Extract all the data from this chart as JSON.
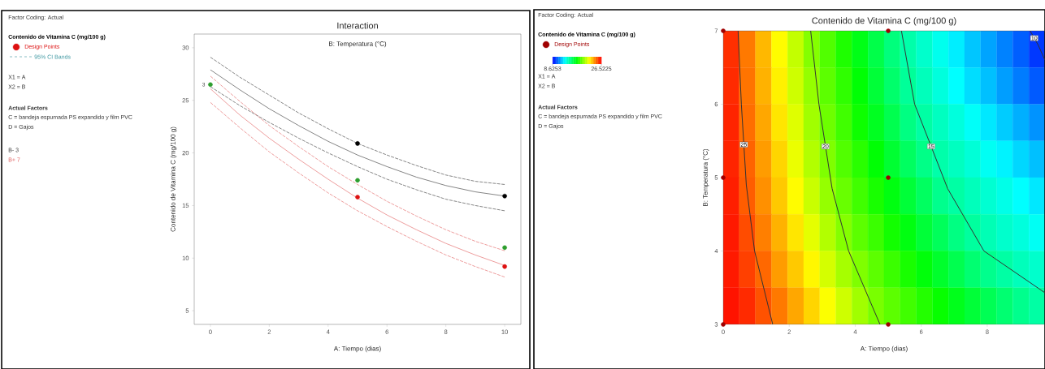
{
  "chart_data": [
    {
      "type": "line",
      "title": "Interaction",
      "subtitle": "B: Temperatura (°C)",
      "xlabel": "A: Tiempo (dias)",
      "ylabel": "Contenido de Vitamina C (mg/100 g)",
      "legend_title": "Contenido de Vitamina C (mg/100 g)",
      "legend": "left",
      "x": [
        0,
        1,
        2,
        3,
        4,
        5,
        6,
        7,
        8,
        9,
        10
      ],
      "series": [
        {
          "name": "B- 3",
          "type": "line",
          "color": "#333333",
          "values": [
            27.9,
            26.0,
            24.2,
            22.6,
            21.1,
            19.8,
            18.7,
            17.7,
            16.9,
            16.3,
            15.9
          ]
        },
        {
          "type": "line",
          "line_style": "dashed",
          "color": "#333333",
          "values": [
            26.3,
            24.5,
            22.9,
            21.4,
            20.0,
            18.7,
            17.5,
            16.5,
            15.6,
            15.0,
            14.5
          ]
        },
        {
          "type": "line",
          "line_style": "dashed",
          "color": "#333333",
          "values": [
            29.1,
            27.2,
            25.5,
            23.8,
            22.3,
            20.9,
            19.8,
            18.8,
            17.9,
            17.3,
            17.0
          ]
        },
        {
          "name": "B+ 7",
          "type": "line",
          "color": "#e05a5a",
          "values": [
            26.1,
            23.6,
            21.4,
            19.4,
            17.5,
            15.7,
            14.1,
            12.7,
            11.4,
            10.3,
            9.3
          ]
        },
        {
          "type": "line",
          "line_style": "dashed",
          "color": "#e05a5a",
          "values": [
            24.8,
            22.4,
            20.1,
            18.1,
            16.2,
            14.5,
            13.0,
            11.6,
            10.3,
            9.2,
            8.2
          ]
        },
        {
          "type": "line",
          "line_style": "dashed",
          "color": "#e05a5a",
          "values": [
            27.3,
            24.9,
            22.6,
            20.6,
            18.7,
            17.0,
            15.4,
            14.0,
            12.7,
            11.6,
            10.7
          ]
        },
        {
          "name": "Design Points",
          "type": "scatter",
          "marker": "circle",
          "color": "#dd1111",
          "x": [
            0,
            5,
            10,
            5,
            10,
            5,
            10
          ],
          "values": [
            26.5,
            17.4,
            11.0,
            20.9,
            15.9,
            15.8,
            9.2
          ],
          "colors": [
            "#2e9e2e",
            "#2e9e2e",
            "#2e9e2e",
            "#000000",
            "#000000",
            "#dd1111",
            "#dd1111"
          ]
        }
      ],
      "xlim": [
        -0.55,
        10.55
      ],
      "ylim": [
        3.7,
        31.3
      ],
      "xticks": [
        0,
        2,
        4,
        6,
        8,
        10
      ],
      "yticks": [
        5,
        10,
        15,
        20,
        25,
        30
      ],
      "annotations": [
        "Factor Coding: Actual",
        "95% CI Bands",
        "X1 = A",
        "X2 = B",
        "**Actual Factors**",
        "C = bandeja espumada PS expandido y film PVC",
        "D = Gajos",
        {
          "text": "3",
          "x": 0,
          "y": 26.5
        }
      ]
    },
    {
      "type": "line",
      "title": "Contenido de Vitamina C (mg/100 g)",
      "xlabel": "A: Tiempo (dias)",
      "ylabel": "B: Temperatura (°C)",
      "legend_title": "Contenido de Vitamina C (mg/100 g)",
      "legend": "left",
      "series": [
        {
          "name": "25",
          "type": "line",
          "color": "#333333",
          "x": [
            0.45,
            0.55,
            0.7,
            0.95,
            1.5
          ],
          "values": [
            7,
            6,
            4.9,
            4,
            3
          ]
        },
        {
          "name": "20",
          "type": "line",
          "color": "#333333",
          "x": [
            2.65,
            2.9,
            3.3,
            3.8,
            4.75
          ],
          "values": [
            7,
            6,
            4.85,
            4,
            3
          ]
        },
        {
          "name": "15",
          "type": "line",
          "color": "#333333",
          "x": [
            5.4,
            5.8,
            6.8,
            7.9,
            9.75
          ],
          "values": [
            7,
            6,
            4.85,
            4,
            3.43
          ]
        },
        {
          "name": "10",
          "type": "line",
          "color": "#333333",
          "x": [
            9.3,
            9.55,
            9.75
          ],
          "values": [
            7,
            6.8,
            6.6
          ]
        },
        {
          "name": "Design Points",
          "type": "scatter",
          "marker": "circle",
          "color": "#a00000",
          "x": [
            0,
            0,
            0,
            5,
            5,
            5
          ],
          "values": [
            7,
            5,
            3,
            7,
            5,
            3
          ]
        }
      ],
      "xlim": [
        0,
        9.75
      ],
      "ylim": [
        3,
        7
      ],
      "xticks": [
        0,
        2,
        4,
        6,
        8
      ],
      "yticks": [
        3,
        4,
        5,
        6,
        7
      ],
      "annotations": [
        "Factor Coding: Actual",
        "X1 = A",
        "X2 = B",
        "**Actual Factors**",
        "C = bandeja espumada PS expandido y film PVC",
        "D = Gajos"
      ]
    },
    {
      "type": "heatmap",
      "categories": [
        null,
        null,
        null,
        null,
        null,
        null,
        null,
        null,
        null,
        null,
        null,
        null,
        null,
        null,
        null,
        null,
        null,
        null,
        null,
        null
      ],
      "y_categories": [
        null,
        null,
        null,
        null,
        null,
        null,
        null,
        null
      ],
      "cells": [
        [
          25.7,
          24.4,
          23.3,
          22.1,
          21.0,
          19.9,
          19.0,
          18.1,
          17.2,
          16.3,
          15.4,
          14.6,
          14.0,
          13.4,
          12.8,
          12.1,
          11.5,
          10.9,
          10.3,
          9.6
        ],
        [
          25.8,
          24.5,
          23.4,
          22.3,
          21.2,
          20.2,
          19.2,
          18.4,
          17.5,
          16.6,
          15.7,
          14.9,
          14.3,
          13.7,
          13.1,
          12.5,
          12.0,
          11.4,
          10.8,
          10.2
        ],
        [
          25.9,
          24.6,
          23.6,
          22.5,
          21.5,
          20.4,
          19.5,
          18.7,
          17.8,
          17.0,
          16.2,
          15.3,
          14.7,
          14.2,
          13.7,
          13.2,
          12.7,
          12.2,
          11.7,
          11.2
        ],
        [
          25.9,
          24.8,
          23.8,
          22.8,
          21.7,
          20.7,
          19.8,
          19.0,
          18.3,
          17.5,
          16.7,
          15.9,
          15.2,
          14.6,
          14.2,
          13.8,
          13.3,
          12.9,
          12.4,
          12.0
        ],
        [
          26.0,
          24.9,
          24.0,
          23.0,
          22.1,
          21.1,
          20.2,
          19.4,
          18.7,
          18.0,
          17.3,
          16.6,
          15.9,
          15.1,
          14.7,
          14.3,
          13.9,
          13.5,
          13.1,
          12.7
        ],
        [
          26.1,
          25.2,
          24.3,
          23.4,
          22.5,
          21.6,
          20.7,
          19.9,
          19.2,
          18.6,
          17.9,
          17.3,
          16.6,
          16.0,
          15.3,
          14.8,
          14.4,
          14.0,
          13.7,
          13.3
        ],
        [
          26.1,
          25.4,
          24.7,
          23.8,
          23.0,
          22.2,
          21.3,
          20.5,
          19.8,
          19.2,
          18.6,
          18.0,
          17.4,
          16.8,
          16.2,
          15.6,
          15.1,
          14.7,
          14.3,
          14.0
        ],
        [
          26.2,
          25.8,
          25.1,
          24.4,
          23.6,
          22.8,
          22.0,
          21.2,
          20.4,
          19.7,
          19.2,
          18.7,
          18.2,
          17.7,
          17.1,
          16.6,
          16.1,
          15.6,
          15.1,
          14.7
        ]
      ],
      "clim": [
        8.6253,
        26.5225
      ],
      "cticks": [
        8.6253,
        26.5225
      ]
    }
  ]
}
